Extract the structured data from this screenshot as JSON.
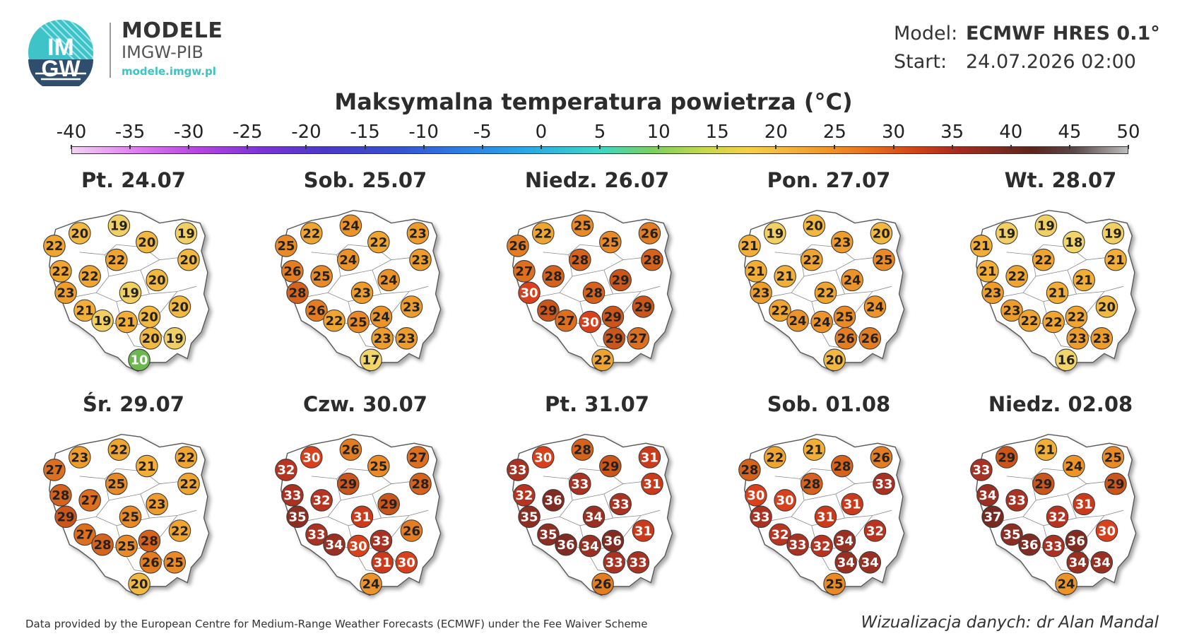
{
  "brand": {
    "logo_text_top": "IM",
    "logo_text_bottom": "GW",
    "name": "MODELE",
    "subtitle": "IMGW-PIB",
    "url": "modele.imgw.pl"
  },
  "meta": {
    "model_label": "Model:",
    "model_value": "ECMWF HRES 0.1°",
    "start_label": "Start:",
    "start_value": "24.07.2026 02:00"
  },
  "title": "Maksymalna temperatura powietrza (°C)",
  "colorbar": {
    "labels": [
      "-40",
      "-35",
      "-30",
      "-25",
      "-20",
      "-15",
      "-10",
      "-5",
      "0",
      "5",
      "10",
      "15",
      "20",
      "25",
      "30",
      "35",
      "40",
      "45",
      "50"
    ],
    "min": -40,
    "max": 50
  },
  "temperature_colors": {
    "10": "#6ab84e",
    "16": "#f3d66a",
    "17": "#f3d66a",
    "18": "#f3d66a",
    "19": "#f1cf62",
    "20": "#f3b840",
    "21": "#f2ae36",
    "22": "#f0a530",
    "23": "#ee9c2c",
    "24": "#ec942a",
    "25": "#e98a26",
    "26": "#e47c22",
    "27": "#de6f1e",
    "28": "#d6621c",
    "29": "#cc551a",
    "30": "#d9401c",
    "31": "#cc3a1c",
    "32": "#b83420",
    "33": "#a93222",
    "34": "#9a3022",
    "35": "#8d2e22",
    "36": "#812c22",
    "37": "#752a22"
  },
  "days": [
    {
      "title": "Pt. 24.07",
      "values": [
        22,
        20,
        19,
        19,
        20,
        20,
        22,
        22,
        22,
        20,
        23,
        19,
        21,
        21,
        20,
        19,
        20,
        20,
        19,
        10
      ]
    },
    {
      "title": "Sob. 25.07",
      "values": [
        25,
        22,
        24,
        23,
        22,
        23,
        26,
        25,
        24,
        24,
        28,
        23,
        26,
        25,
        23,
        22,
        24,
        23,
        23,
        17
      ]
    },
    {
      "title": "Niedz. 26.07",
      "values": [
        26,
        22,
        25,
        26,
        25,
        28,
        27,
        28,
        28,
        29,
        30,
        28,
        29,
        30,
        29,
        27,
        29,
        29,
        27,
        22
      ]
    },
    {
      "title": "Pon. 27.07",
      "values": [
        21,
        19,
        20,
        20,
        23,
        25,
        21,
        21,
        22,
        24,
        23,
        22,
        22,
        24,
        24,
        24,
        25,
        26,
        26,
        20
      ]
    },
    {
      "title": "Wt. 28.07",
      "values": [
        21,
        19,
        19,
        19,
        18,
        21,
        21,
        22,
        22,
        21,
        23,
        21,
        23,
        22,
        20,
        22,
        22,
        23,
        23,
        16
      ]
    },
    {
      "title": "Śr. 29.07",
      "values": [
        27,
        23,
        22,
        22,
        21,
        22,
        28,
        27,
        25,
        23,
        29,
        25,
        27,
        25,
        22,
        28,
        28,
        26,
        25,
        20
      ]
    },
    {
      "title": "Czw. 30.07",
      "values": [
        32,
        30,
        26,
        27,
        25,
        28,
        33,
        32,
        29,
        29,
        35,
        31,
        33,
        30,
        26,
        34,
        33,
        31,
        30,
        24
      ]
    },
    {
      "title": "Pt. 31.07",
      "values": [
        33,
        30,
        28,
        31,
        29,
        31,
        32,
        36,
        33,
        33,
        35,
        34,
        35,
        34,
        31,
        36,
        36,
        33,
        33,
        26
      ]
    },
    {
      "title": "Sob. 01.08",
      "values": [
        28,
        22,
        21,
        26,
        28,
        33,
        30,
        30,
        28,
        31,
        33,
        31,
        32,
        32,
        32,
        33,
        34,
        34,
        34,
        25
      ]
    },
    {
      "title": "Niedz. 02.08",
      "values": [
        33,
        29,
        21,
        25,
        24,
        29,
        34,
        33,
        29,
        31,
        37,
        32,
        35,
        33,
        30,
        36,
        36,
        34,
        34,
        24
      ]
    }
  ],
  "footer": {
    "credit": "Data provided by the European Centre for Medium-Range Weather Forecasts (ECMWF) under the Fee Waiver Scheme",
    "author": "Wizualizacja danych: dr Alan Mandal"
  }
}
